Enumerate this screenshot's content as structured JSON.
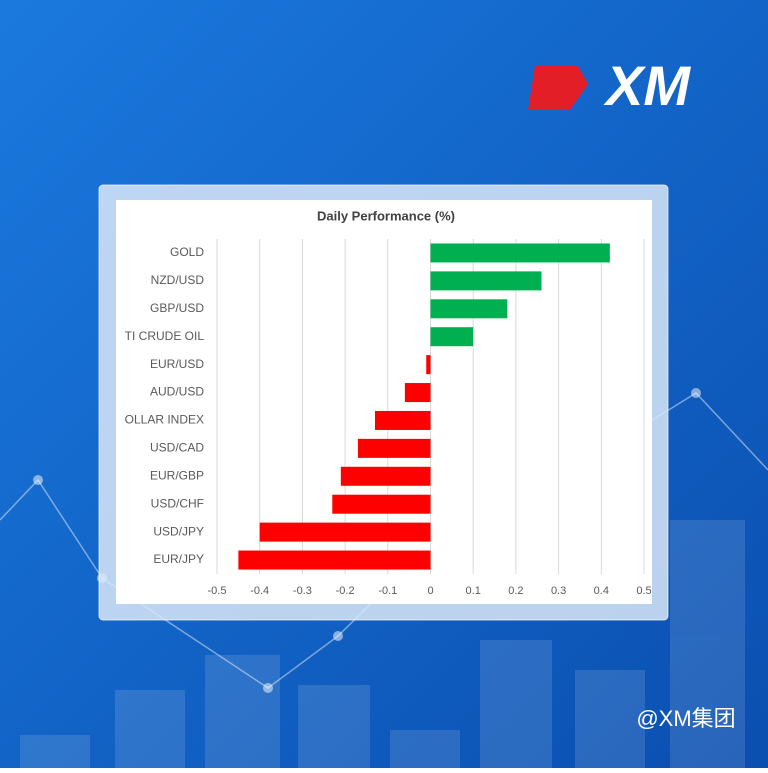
{
  "logo": "XM",
  "watermark": "@XM集团",
  "chart_data": {
    "type": "bar",
    "orientation": "horizontal",
    "title": "Daily Performance (%)",
    "categories": [
      "GOLD",
      "NZD/USD",
      "GBP/USD",
      "TI CRUDE OIL",
      "EUR/USD",
      "AUD/USD",
      "OLLAR INDEX",
      "USD/CAD",
      "EUR/GBP",
      "USD/CHF",
      "USD/JPY",
      "EUR/JPY"
    ],
    "values": [
      0.42,
      0.26,
      0.18,
      0.1,
      -0.01,
      -0.06,
      -0.13,
      -0.17,
      -0.21,
      -0.23,
      -0.4,
      -0.45
    ],
    "positive_color": "#00b050",
    "negative_color": "#ff0000",
    "xlim": [
      -0.5,
      0.5
    ],
    "xticks": [
      -0.5,
      -0.4,
      -0.3,
      -0.2,
      -0.1,
      0,
      0.1,
      0.2,
      0.3,
      0.4,
      0.5
    ],
    "grid": true
  }
}
